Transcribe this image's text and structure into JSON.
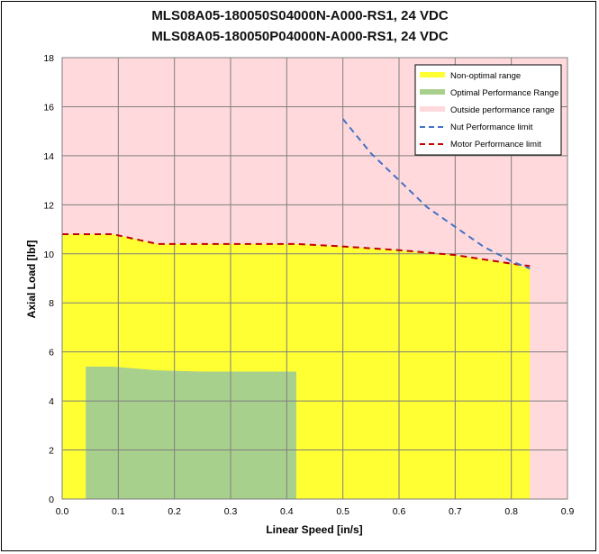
{
  "chart_data": {
    "type": "area",
    "title_lines": [
      "MLS08A05-180050S04000N-A000-RS1, 24 VDC",
      "MLS08A05-180050P04000N-A000-RS1, 24 VDC"
    ],
    "xlabel": "Linear Speed [in/s]",
    "ylabel": "Axial Load [lbf]",
    "xlim": [
      0,
      0.9
    ],
    "ylim": [
      0,
      18
    ],
    "x_ticks": [
      "0.0",
      "0.1",
      "0.2",
      "0.3",
      "0.4",
      "0.5",
      "0.6",
      "0.7",
      "0.8",
      "0.9"
    ],
    "y_ticks": [
      "0",
      "2",
      "4",
      "6",
      "8",
      "10",
      "12",
      "14",
      "16",
      "18"
    ],
    "grid": true,
    "legend_position": "top-right",
    "colors": {
      "background": "#ffd9dc",
      "non_optimal": "#ffff33",
      "optimal": "#a8d08d",
      "nut_line": "#4472c4",
      "motor_line": "#c00000",
      "grid": "#7f7f7f"
    },
    "series": [
      {
        "name": "Non-optimal range",
        "kind": "area",
        "x": [
          0.0,
          0.09,
          0.17,
          0.3,
          0.42,
          0.5,
          0.6,
          0.7,
          0.8,
          0.833
        ],
        "y": [
          10.8,
          10.8,
          10.4,
          10.4,
          10.4,
          10.3,
          10.15,
          9.95,
          9.6,
          9.4
        ]
      },
      {
        "name": "Optimal Performance Range",
        "kind": "area",
        "x": [
          0.042,
          0.09,
          0.17,
          0.25,
          0.35,
          0.417
        ],
        "y": [
          5.4,
          5.4,
          5.25,
          5.2,
          5.2,
          5.2
        ]
      },
      {
        "name": "Outside performance range",
        "kind": "background"
      },
      {
        "name": "Nut Performance limit",
        "kind": "dashed-line",
        "x": [
          0.5,
          0.55,
          0.6,
          0.65,
          0.7,
          0.75,
          0.8,
          0.833
        ],
        "y": [
          15.5,
          14.1,
          13.0,
          11.9,
          11.1,
          10.3,
          9.7,
          9.4
        ]
      },
      {
        "name": "Motor Performance limit",
        "kind": "dashed-line",
        "x": [
          0.0,
          0.09,
          0.17,
          0.3,
          0.42,
          0.5,
          0.6,
          0.7,
          0.8,
          0.833
        ],
        "y": [
          10.8,
          10.8,
          10.4,
          10.4,
          10.4,
          10.3,
          10.15,
          9.95,
          9.6,
          9.5
        ]
      }
    ]
  }
}
